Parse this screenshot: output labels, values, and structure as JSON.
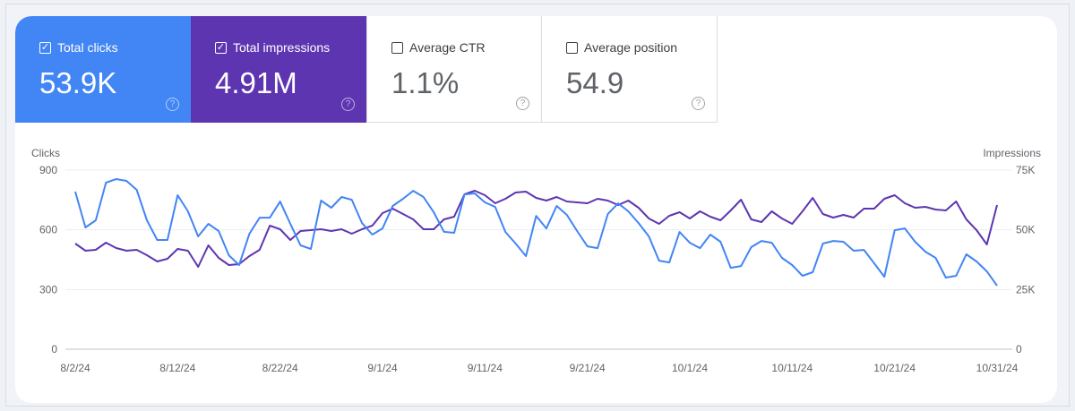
{
  "metrics": [
    {
      "label": "Total clicks",
      "value": "53.9K",
      "checked": true,
      "color": "#4285f4"
    },
    {
      "label": "Total impressions",
      "value": "4.91M",
      "checked": true,
      "color": "#5e35b1"
    },
    {
      "label": "Average CTR",
      "value": "1.1%",
      "checked": false
    },
    {
      "label": "Average position",
      "value": "54.9",
      "checked": false
    }
  ],
  "icons": {
    "checked": "checkbox-checked-icon",
    "unchecked": "checkbox-unchecked-icon",
    "help": "help-circle-icon"
  },
  "chart_data": {
    "type": "line",
    "ylabel_left": "Clicks",
    "ylabel_right": "Impressions",
    "yticks_left": [
      "0",
      "300",
      "600",
      "900"
    ],
    "yticks_right": [
      "0",
      "25K",
      "50K",
      "75K"
    ],
    "ylim_left": [
      0,
      900
    ],
    "ylim_right": [
      0,
      75000
    ],
    "xticks": [
      "8/2/24",
      "8/12/24",
      "8/22/24",
      "9/1/24",
      "9/11/24",
      "9/21/24",
      "10/1/24",
      "10/11/24",
      "10/21/24",
      "10/31/24"
    ],
    "grid": true,
    "x": [
      "8/2",
      "8/3",
      "8/4",
      "8/5",
      "8/6",
      "8/7",
      "8/8",
      "8/9",
      "8/10",
      "8/11",
      "8/12",
      "8/13",
      "8/14",
      "8/15",
      "8/16",
      "8/17",
      "8/18",
      "8/19",
      "8/20",
      "8/21",
      "8/22",
      "8/23",
      "8/24",
      "8/25",
      "8/26",
      "8/27",
      "8/28",
      "8/29",
      "8/30",
      "8/31",
      "9/1",
      "9/2",
      "9/3",
      "9/4",
      "9/5",
      "9/6",
      "9/7",
      "9/8",
      "9/9",
      "9/10",
      "9/11",
      "9/12",
      "9/13",
      "9/14",
      "9/15",
      "9/16",
      "9/17",
      "9/18",
      "9/19",
      "9/20",
      "9/21",
      "9/22",
      "9/23",
      "9/24",
      "9/25",
      "9/26",
      "9/27",
      "9/28",
      "9/29",
      "9/30",
      "10/1",
      "10/2",
      "10/3",
      "10/4",
      "10/5",
      "10/6",
      "10/7",
      "10/8",
      "10/9",
      "10/10",
      "10/11",
      "10/12",
      "10/13",
      "10/14",
      "10/15",
      "10/16",
      "10/17",
      "10/18",
      "10/19",
      "10/20",
      "10/21",
      "10/22",
      "10/23",
      "10/24",
      "10/25",
      "10/26",
      "10/27",
      "10/28",
      "10/29",
      "10/30",
      "10/31"
    ],
    "series": [
      {
        "name": "Clicks",
        "axis": "left",
        "color": "#4285f4",
        "values": [
          792,
          612,
          648,
          837,
          855,
          846,
          801,
          648,
          549,
          549,
          774,
          693,
          567,
          630,
          594,
          472,
          423,
          580,
          661,
          661,
          742,
          630,
          522,
          504,
          747,
          711,
          765,
          751,
          634,
          576,
          607,
          720,
          756,
          796,
          765,
          688,
          590,
          585,
          778,
          783,
          738,
          715,
          589,
          531,
          468,
          670,
          607,
          720,
          675,
          594,
          517,
          508,
          679,
          733,
          693,
          634,
          567,
          445,
          436,
          589,
          535,
          508,
          576,
          540,
          409,
          418,
          513,
          544,
          535,
          459,
          423,
          369,
          387,
          531,
          544,
          540,
          495,
          499,
          432,
          364,
          598,
          607,
          540,
          490,
          459,
          360,
          369,
          477,
          441,
          391,
          319
        ]
      },
      {
        "name": "Impressions",
        "axis": "right",
        "color": "#5e35b1",
        "values": [
          44250,
          41250,
          41625,
          44625,
          42375,
          41250,
          41625,
          39375,
          36750,
          37875,
          42000,
          41250,
          34500,
          43500,
          38250,
          35250,
          35625,
          39000,
          41625,
          51750,
          50250,
          45750,
          49500,
          49875,
          50250,
          49500,
          50250,
          48375,
          50250,
          51750,
          57000,
          58875,
          56625,
          54375,
          50250,
          50250,
          54375,
          55500,
          64875,
          66375,
          64500,
          61125,
          63000,
          65625,
          66000,
          63375,
          62250,
          63750,
          61875,
          61500,
          61125,
          63000,
          62250,
          60375,
          62250,
          59250,
          54750,
          52500,
          55875,
          57375,
          54750,
          57750,
          55500,
          54000,
          58125,
          62625,
          54375,
          53250,
          57750,
          54750,
          52500,
          57750,
          63375,
          56625,
          55125,
          56250,
          55125,
          58875,
          58875,
          63000,
          64500,
          61125,
          59250,
          59625,
          58500,
          58125,
          61875,
          54375,
          49875,
          43875,
          60375
        ]
      }
    ]
  }
}
